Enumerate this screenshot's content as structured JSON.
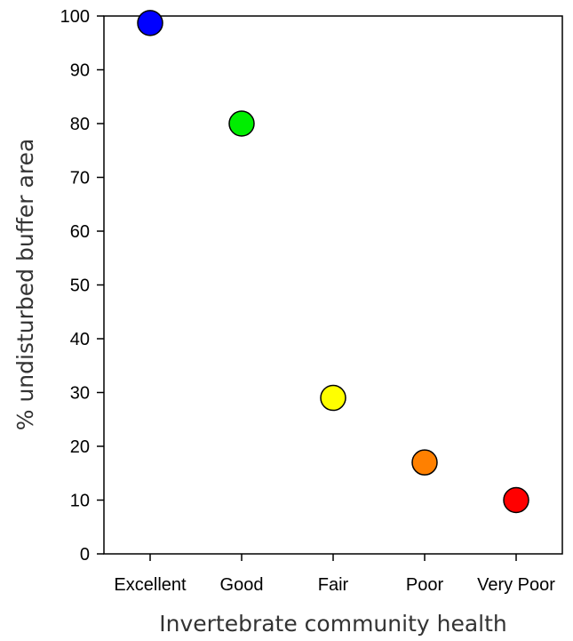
{
  "chart_data": {
    "type": "scatter",
    "title": "",
    "xlabel": "Invertebrate community health",
    "ylabel": "% undisturbed buffer area",
    "categories": [
      "Excellent",
      "Good",
      "Fair",
      "Poor",
      "Very Poor"
    ],
    "values": [
      98.7,
      80,
      29,
      17,
      10
    ],
    "point_colors": [
      "#0000ff",
      "#00ee00",
      "#ffff00",
      "#ff8000",
      "#ff0000"
    ],
    "ylim": [
      0,
      100
    ],
    "yticks": [
      0,
      10,
      20,
      30,
      40,
      50,
      60,
      70,
      80,
      90,
      100
    ],
    "grid": false,
    "legend": "none"
  }
}
